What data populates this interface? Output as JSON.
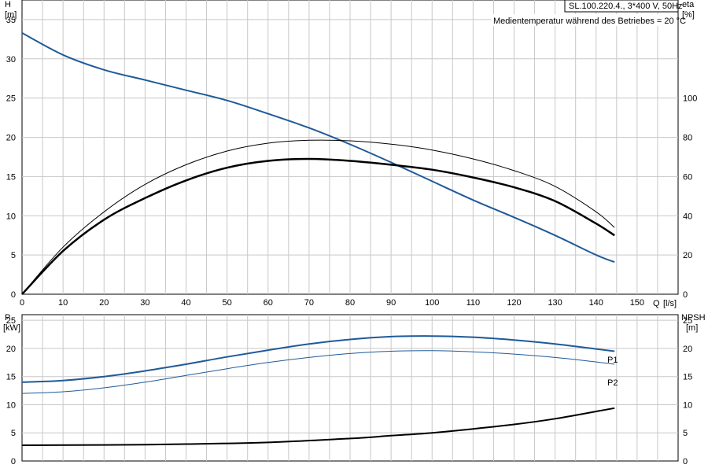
{
  "header": {
    "pump_label": "SL.100.220.4., 3*400 V, 50Hz",
    "medium_note": "Medientemperatur während des Betriebes = 20 °C"
  },
  "chart_data": [
    {
      "type": "line",
      "name": "upper",
      "ylabel": "H",
      "yunit": "[m]",
      "y2label": "eta",
      "y2unit": "[%]",
      "xlabel": "Q",
      "xunit": "[l/s]",
      "xlim": [
        0,
        160
      ],
      "ylim": [
        0,
        37.5
      ],
      "y2lim": [
        0,
        150
      ],
      "xticks": [
        0,
        10,
        20,
        30,
        40,
        50,
        60,
        70,
        80,
        90,
        100,
        110,
        120,
        130,
        140,
        150
      ],
      "yticks": [
        0,
        5,
        10,
        15,
        20,
        25,
        30,
        35
      ],
      "y2ticks": [
        0,
        20,
        40,
        60,
        80,
        100
      ],
      "grid": true,
      "colors": {
        "head": "#1f5a99",
        "eta": "#000000",
        "grid": "#c8c8c8"
      },
      "series": [
        {
          "key": "head",
          "axis": "left",
          "width": 2,
          "points": [
            [
              0,
              33.3
            ],
            [
              10,
              30.5
            ],
            [
              20,
              28.6
            ],
            [
              30,
              27.3
            ],
            [
              40,
              26.0
            ],
            [
              50,
              24.7
            ],
            [
              60,
              23.0
            ],
            [
              70,
              21.2
            ],
            [
              80,
              19.1
            ],
            [
              90,
              16.8
            ],
            [
              100,
              14.4
            ],
            [
              110,
              12.0
            ],
            [
              120,
              9.8
            ],
            [
              130,
              7.5
            ],
            [
              140,
              5.0
            ],
            [
              144.5,
              4.1
            ]
          ]
        },
        {
          "key": "eta_thin",
          "axis": "right",
          "width": 1,
          "points": [
            [
              0,
              0
            ],
            [
              10,
              24
            ],
            [
              20,
              42
            ],
            [
              30,
              56
            ],
            [
              40,
              66
            ],
            [
              50,
              73
            ],
            [
              60,
              77
            ],
            [
              70,
              78.5
            ],
            [
              80,
              78.2
            ],
            [
              90,
              76.5
            ],
            [
              100,
              73.5
            ],
            [
              110,
              69
            ],
            [
              120,
              63
            ],
            [
              130,
              55
            ],
            [
              140,
              42
            ],
            [
              144.5,
              34
            ]
          ]
        },
        {
          "key": "eta_thick",
          "axis": "right",
          "width": 2.5,
          "points": [
            [
              0,
              0
            ],
            [
              10,
              22
            ],
            [
              20,
              38
            ],
            [
              30,
              49
            ],
            [
              40,
              58
            ],
            [
              50,
              64.5
            ],
            [
              60,
              68
            ],
            [
              70,
              69
            ],
            [
              80,
              68
            ],
            [
              90,
              66
            ],
            [
              100,
              63.5
            ],
            [
              110,
              59.5
            ],
            [
              120,
              54.5
            ],
            [
              130,
              47.5
            ],
            [
              140,
              36
            ],
            [
              144.5,
              30
            ]
          ]
        }
      ]
    },
    {
      "type": "line",
      "name": "lower",
      "ylabel": "P",
      "yunit": "[kW]",
      "y2label": "NPSH",
      "y2unit": "[m]",
      "xlim": [
        0,
        160
      ],
      "ylim": [
        0,
        26
      ],
      "y2lim": [
        0,
        26
      ],
      "yticks": [
        0,
        5,
        10,
        15,
        20,
        25
      ],
      "y2ticks": [
        0,
        5,
        10,
        15,
        20,
        25
      ],
      "grid": true,
      "colors": {
        "p1": "#1f5a99",
        "p2": "#1f5a99",
        "npsh": "#000000"
      },
      "series": [
        {
          "key": "P1",
          "label": "P1",
          "axis": "left",
          "width": 2,
          "points": [
            [
              0,
              14.0
            ],
            [
              10,
              14.3
            ],
            [
              20,
              15.0
            ],
            [
              30,
              16.0
            ],
            [
              40,
              17.2
            ],
            [
              50,
              18.5
            ],
            [
              60,
              19.7
            ],
            [
              70,
              20.8
            ],
            [
              80,
              21.6
            ],
            [
              90,
              22.1
            ],
            [
              100,
              22.2
            ],
            [
              110,
              22.0
            ],
            [
              120,
              21.5
            ],
            [
              130,
              20.8
            ],
            [
              140,
              19.9
            ],
            [
              144.5,
              19.5
            ]
          ]
        },
        {
          "key": "P2",
          "label": "P2",
          "axis": "left",
          "width": 1,
          "points": [
            [
              0,
              12.0
            ],
            [
              10,
              12.3
            ],
            [
              20,
              13.0
            ],
            [
              30,
              14.0
            ],
            [
              40,
              15.2
            ],
            [
              50,
              16.4
            ],
            [
              60,
              17.5
            ],
            [
              70,
              18.4
            ],
            [
              80,
              19.1
            ],
            [
              90,
              19.5
            ],
            [
              100,
              19.6
            ],
            [
              110,
              19.4
            ],
            [
              120,
              19.0
            ],
            [
              130,
              18.4
            ],
            [
              140,
              17.6
            ],
            [
              144.5,
              17.2
            ]
          ]
        },
        {
          "key": "NPSH",
          "axis": "right",
          "width": 2,
          "points": [
            [
              0,
              2.8
            ],
            [
              20,
              2.85
            ],
            [
              40,
              3.0
            ],
            [
              60,
              3.3
            ],
            [
              80,
              4.0
            ],
            [
              90,
              4.5
            ],
            [
              100,
              5.0
            ],
            [
              110,
              5.7
            ],
            [
              120,
              6.5
            ],
            [
              130,
              7.5
            ],
            [
              140,
              8.8
            ],
            [
              144.5,
              9.4
            ]
          ]
        }
      ]
    }
  ]
}
